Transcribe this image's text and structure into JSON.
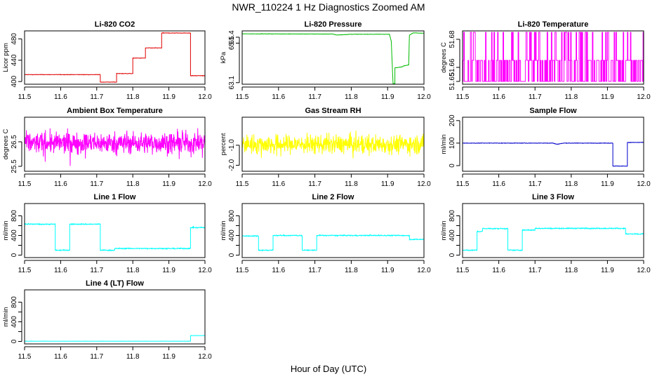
{
  "title": "NWR_110224  1 Hz Diagnostics Zoomed AM",
  "xlabel": "Hour of Day (UTC)",
  "chart_data": [
    {
      "type": "line",
      "title": "Li-820 CO2",
      "ylabel": "Licor ppm",
      "color": "#e00000",
      "xlim": [
        11.5,
        12.0
      ],
      "ylim": [
        395,
        495
      ],
      "yticks": [
        400,
        440,
        480
      ],
      "noise": 0.6,
      "x": [
        11.5,
        11.71,
        11.71,
        11.755,
        11.755,
        11.8,
        11.8,
        11.835,
        11.835,
        11.88,
        11.88,
        11.96,
        11.96,
        12.0
      ],
      "values": [
        413,
        413,
        399,
        399,
        415,
        415,
        444,
        444,
        463,
        463,
        491,
        491,
        411,
        411
      ]
    },
    {
      "type": "line",
      "title": "Li-820 Pressure",
      "ylabel": "kPa",
      "color": "#00bb00",
      "xlim": [
        11.5,
        12.0
      ],
      "ylim": [
        63.02,
        65.72
      ],
      "yticks": [
        63.1,
        65.1,
        65.4
      ],
      "ytick_labels": [
        "63.1",
        "65.1",
        "65.4"
      ],
      "noise": 0.012,
      "x": [
        11.5,
        11.75,
        11.76,
        11.8,
        11.905,
        11.91,
        11.915,
        11.92,
        11.92,
        11.94,
        11.945,
        11.958,
        11.96,
        11.97,
        12.0
      ],
      "values": [
        65.57,
        65.56,
        65.51,
        65.55,
        65.55,
        65.2,
        63.05,
        63.05,
        63.85,
        63.9,
        63.95,
        64.0,
        65.5,
        65.62,
        65.6
      ]
    },
    {
      "type": "line",
      "title": "Li-820 Temperature",
      "ylabel": "degrees C",
      "color": "#ff00ff",
      "xlim": [
        11.5,
        12.0
      ],
      "ylim": [
        51.648,
        51.686
      ],
      "yticks": [
        51.65,
        51.66,
        51.68
      ],
      "ytick_labels": [
        "51.65",
        "51.66",
        "51.68"
      ],
      "pattern": "digital",
      "low": 51.65,
      "high": 51.665,
      "top": 51.685,
      "x": [
        11.5,
        12.0
      ],
      "values": [
        51.665,
        51.665
      ]
    },
    {
      "type": "line",
      "title": "Ambient Box Temperature",
      "ylabel": "degrees C",
      "color": "#ff00ff",
      "xlim": [
        11.5,
        12.0
      ],
      "ylim": [
        25.3,
        27.5
      ],
      "yticks": [
        25.5,
        26.5
      ],
      "ytick_labels": [
        "25.5",
        "26.5"
      ],
      "noise": 0.55,
      "x": [
        11.5,
        12.0
      ],
      "values": [
        26.45,
        26.45
      ]
    },
    {
      "type": "line",
      "title": "Gas Stream RH",
      "ylabel": "percent",
      "color": "#ffff00",
      "xlim": [
        11.5,
        12.0
      ],
      "ylim": [
        -2.3,
        0.4
      ],
      "yticks": [
        -2.0,
        -1.0
      ],
      "ytick_labels": [
        "-2.0",
        "-1.0"
      ],
      "noise": 0.6,
      "x": [
        11.5,
        12.0
      ],
      "values": [
        -0.95,
        -0.95
      ]
    },
    {
      "type": "line",
      "title": "Sample Flow",
      "ylabel": "ml/min",
      "color": "#0000cc",
      "xlim": [
        11.5,
        12.0
      ],
      "ylim": [
        -25,
        215
      ],
      "yticks": [
        0,
        100,
        200
      ],
      "noise": 1.5,
      "x": [
        11.5,
        11.75,
        11.76,
        11.78,
        11.915,
        11.915,
        11.955,
        11.955,
        12.0
      ],
      "values": [
        100,
        100,
        95,
        100,
        100,
        -2,
        -2,
        103,
        103
      ]
    },
    {
      "type": "line",
      "title": "Line 1 Flow",
      "ylabel": "ml/min",
      "color": "#00ffff",
      "xlim": [
        11.5,
        12.0
      ],
      "ylim": [
        -50,
        1050
      ],
      "yticks": [
        0,
        200,
        400,
        600,
        800
      ],
      "ytick_labels": [
        "0",
        "",
        "400",
        "",
        "800"
      ],
      "noise": 15,
      "x": [
        11.5,
        11.585,
        11.585,
        11.625,
        11.625,
        11.71,
        11.71,
        11.75,
        11.75,
        11.96,
        11.96,
        12.0
      ],
      "values": [
        630,
        630,
        100,
        100,
        630,
        630,
        100,
        100,
        135,
        135,
        560,
        560
      ]
    },
    {
      "type": "line",
      "title": "Line 2 Flow",
      "ylabel": "ml/min",
      "color": "#00ffff",
      "xlim": [
        11.5,
        12.0
      ],
      "ylim": [
        -50,
        1050
      ],
      "yticks": [
        0,
        200,
        400,
        600,
        800
      ],
      "ytick_labels": [
        "0",
        "",
        "400",
        "",
        "800"
      ],
      "noise": 15,
      "x": [
        11.5,
        11.545,
        11.545,
        11.585,
        11.585,
        11.665,
        11.665,
        11.705,
        11.705,
        11.96,
        11.96,
        12.0
      ],
      "values": [
        390,
        390,
        100,
        100,
        400,
        400,
        100,
        100,
        400,
        400,
        320,
        320
      ]
    },
    {
      "type": "line",
      "title": "Line 3 Flow",
      "ylabel": "ml/min",
      "color": "#00ffff",
      "xlim": [
        11.5,
        12.0
      ],
      "ylim": [
        -50,
        1050
      ],
      "yticks": [
        0,
        200,
        400,
        600,
        800
      ],
      "ytick_labels": [
        "0",
        "",
        "400",
        "",
        "800"
      ],
      "noise": 15,
      "x": [
        11.5,
        11.54,
        11.54,
        11.555,
        11.555,
        11.625,
        11.625,
        11.665,
        11.665,
        11.7,
        11.7,
        11.95,
        11.95,
        12.0
      ],
      "values": [
        100,
        100,
        480,
        480,
        540,
        540,
        100,
        100,
        510,
        510,
        545,
        545,
        430,
        430
      ]
    },
    {
      "type": "line",
      "title": "Line 4 (LT) Flow",
      "ylabel": "ml/min",
      "color": "#00ffff",
      "xlim": [
        11.5,
        12.0
      ],
      "ylim": [
        -50,
        1050
      ],
      "yticks": [
        0,
        200,
        400,
        600,
        800
      ],
      "ytick_labels": [
        "0",
        "",
        "400",
        "",
        "800"
      ],
      "noise": 3,
      "x": [
        11.5,
        11.96,
        11.96,
        12.0
      ],
      "values": [
        5,
        5,
        120,
        120
      ]
    }
  ],
  "xticks": [
    11.5,
    11.6,
    11.7,
    11.8,
    11.9,
    12.0
  ],
  "xtick_labels": [
    "11.5",
    "11.6",
    "11.7",
    "11.8",
    "11.9",
    "12.0"
  ]
}
